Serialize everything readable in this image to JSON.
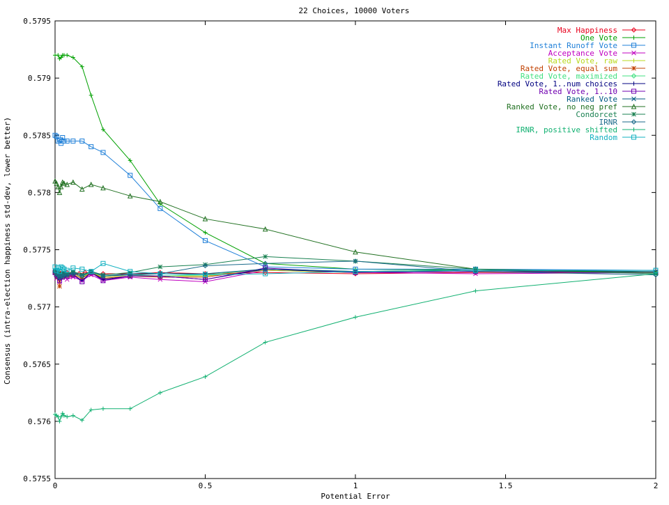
{
  "chart_data": {
    "type": "line",
    "title": "22 Choices, 10000 Voters",
    "xlabel": "Potential Error",
    "ylabel": "Consensus (intra-election happiness std-dev, lower better)",
    "xlim": [
      0,
      2
    ],
    "ylim": [
      0.5755,
      0.5795
    ],
    "xticks": [
      0,
      0.5,
      1,
      1.5,
      2
    ],
    "xtick_labels": [
      "0",
      "0.5",
      "1",
      "1.5",
      "2"
    ],
    "yticks": [
      0.5755,
      0.576,
      0.5765,
      0.577,
      0.5775,
      0.578,
      0.5785,
      0.579,
      0.5795
    ],
    "ytick_labels": [
      "0.5755",
      "0.576",
      "0.5765",
      "0.577",
      "0.5775",
      "0.578",
      "0.5785",
      "0.579",
      "0.5795"
    ],
    "grid": false,
    "legend_position": "top-right",
    "series": [
      {
        "name": "Max Happiness",
        "color": "#e8001c",
        "marker": "diamond",
        "x": [
          0,
          0.005,
          0.01,
          0.015,
          0.02,
          0.025,
          0.03,
          0.04,
          0.05,
          0.06,
          0.08,
          0.1,
          0.12,
          0.16,
          0.25,
          0.35,
          0.5,
          0.7,
          1,
          1.4,
          2
        ],
        "y": [
          0.5773,
          0.5773,
          0.57728,
          0.5773,
          0.57729,
          0.57728,
          0.57729,
          0.5773,
          0.57728,
          0.57729,
          0.57729,
          0.5773,
          0.57729,
          0.57729,
          0.57729,
          0.5773,
          0.57729,
          0.5773,
          0.57729,
          0.5773,
          0.5773
        ]
      },
      {
        "name": "One Vote",
        "color": "#00a000",
        "marker": "plus",
        "x": [
          0,
          0.01,
          0.015,
          0.02,
          0.025,
          0.03,
          0.04,
          0.06,
          0.09,
          0.12,
          0.16,
          0.25,
          0.35,
          0.5,
          0.7,
          1,
          1.4,
          2
        ],
        "y": [
          0.5792,
          0.5792,
          0.57917,
          0.57918,
          0.5792,
          0.5792,
          0.5792,
          0.57918,
          0.5791,
          0.57885,
          0.57855,
          0.57828,
          0.5779,
          0.57765,
          0.57738,
          0.57733,
          0.57732,
          0.5773
        ]
      },
      {
        "name": "Instant Runoff Vote",
        "color": "#1e7fd8",
        "marker": "square",
        "x": [
          0,
          0.005,
          0.01,
          0.015,
          0.02,
          0.025,
          0.03,
          0.04,
          0.06,
          0.09,
          0.12,
          0.16,
          0.25,
          0.35,
          0.5,
          0.7,
          1,
          1.4,
          2
        ],
        "y": [
          0.5785,
          0.57849,
          0.57845,
          0.57846,
          0.57843,
          0.57848,
          0.57845,
          0.57845,
          0.57845,
          0.57845,
          0.5784,
          0.57835,
          0.57815,
          0.57786,
          0.57758,
          0.57735,
          0.57733,
          0.57733,
          0.57732
        ]
      },
      {
        "name": "Acceptance Vote",
        "color": "#c000c0",
        "marker": "cross",
        "x": [
          0,
          0.005,
          0.01,
          0.015,
          0.02,
          0.025,
          0.03,
          0.04,
          0.06,
          0.09,
          0.12,
          0.16,
          0.25,
          0.35,
          0.5,
          0.7,
          1,
          1.4,
          2
        ],
        "y": [
          0.5773,
          0.57725,
          0.57728,
          0.57722,
          0.57726,
          0.57727,
          0.57728,
          0.57724,
          0.57726,
          0.57723,
          0.57728,
          0.57723,
          0.57726,
          0.57724,
          0.57722,
          0.57732,
          0.5773,
          0.57729,
          0.5773
        ]
      },
      {
        "name": "Rated Vote, raw",
        "color": "#b8d81e",
        "marker": "plus",
        "x": [
          0,
          0.005,
          0.01,
          0.015,
          0.02,
          0.025,
          0.03,
          0.04,
          0.06,
          0.09,
          0.12,
          0.16,
          0.25,
          0.35,
          0.5,
          0.7,
          1,
          1.4,
          2
        ],
        "y": [
          0.5773,
          0.57729,
          0.57727,
          0.57724,
          0.57728,
          0.57727,
          0.57729,
          0.57728,
          0.57729,
          0.57726,
          0.5773,
          0.57726,
          0.57728,
          0.57727,
          0.57727,
          0.57732,
          0.5773,
          0.57731,
          0.5773
        ]
      },
      {
        "name": "Rated Vote, equal sum",
        "color": "#c04000",
        "marker": "star",
        "x": [
          0,
          0.005,
          0.01,
          0.015,
          0.02,
          0.025,
          0.03,
          0.04,
          0.06,
          0.09,
          0.12,
          0.16,
          0.25,
          0.35,
          0.5,
          0.7,
          1,
          1.4,
          2
        ],
        "y": [
          0.5773,
          0.57728,
          0.57726,
          0.57718,
          0.57727,
          0.57726,
          0.57728,
          0.57727,
          0.57728,
          0.57725,
          0.5773,
          0.57725,
          0.57727,
          0.57726,
          0.57726,
          0.57733,
          0.5773,
          0.57731,
          0.5773
        ]
      },
      {
        "name": "Rated Vote, maximized",
        "color": "#40e080",
        "marker": "diamond",
        "x": [
          0,
          0.005,
          0.01,
          0.015,
          0.02,
          0.025,
          0.03,
          0.04,
          0.06,
          0.09,
          0.12,
          0.16,
          0.25,
          0.35,
          0.5,
          0.7,
          1,
          1.4,
          2
        ],
        "y": [
          0.57731,
          0.57729,
          0.57728,
          0.57725,
          0.57728,
          0.57727,
          0.57729,
          0.57728,
          0.57729,
          0.57727,
          0.5773,
          0.57727,
          0.57728,
          0.57727,
          0.57728,
          0.57733,
          0.57731,
          0.57731,
          0.5773
        ]
      },
      {
        "name": "Rated Vote, 1..num choices",
        "color": "#000080",
        "marker": "plus",
        "x": [
          0,
          0.005,
          0.01,
          0.015,
          0.02,
          0.025,
          0.03,
          0.04,
          0.06,
          0.09,
          0.12,
          0.16,
          0.25,
          0.35,
          0.5,
          0.7,
          1,
          1.4,
          2
        ],
        "y": [
          0.5773,
          0.57728,
          0.57727,
          0.57724,
          0.57727,
          0.57726,
          0.57728,
          0.57727,
          0.57728,
          0.57723,
          0.5773,
          0.57724,
          0.57727,
          0.57727,
          0.57724,
          0.57733,
          0.5773,
          0.57731,
          0.5773
        ]
      },
      {
        "name": "Rated Vote, 1..10",
        "color": "#7000b0",
        "marker": "square",
        "x": [
          0,
          0.005,
          0.01,
          0.015,
          0.02,
          0.025,
          0.03,
          0.04,
          0.06,
          0.09,
          0.12,
          0.16,
          0.25,
          0.35,
          0.5,
          0.7,
          1,
          1.4,
          2
        ],
        "y": [
          0.5773,
          0.57728,
          0.57727,
          0.57723,
          0.57727,
          0.57726,
          0.57728,
          0.57727,
          0.57728,
          0.57722,
          0.5773,
          0.57723,
          0.57727,
          0.57727,
          0.57724,
          0.57734,
          0.5773,
          0.57731,
          0.5773
        ]
      },
      {
        "name": "Ranked Vote",
        "color": "#005a82",
        "marker": "cross",
        "x": [
          0,
          0.005,
          0.01,
          0.015,
          0.02,
          0.025,
          0.03,
          0.04,
          0.06,
          0.09,
          0.12,
          0.16,
          0.25,
          0.35,
          0.5,
          0.7,
          1,
          1.4,
          2
        ],
        "y": [
          0.57731,
          0.57729,
          0.57728,
          0.57726,
          0.57728,
          0.57727,
          0.57729,
          0.57728,
          0.5773,
          0.57728,
          0.57731,
          0.57727,
          0.57729,
          0.57729,
          0.57729,
          0.57733,
          0.57731,
          0.57732,
          0.57731
        ]
      },
      {
        "name": "Ranked Vote, no neg pref",
        "color": "#207020",
        "marker": "triangle",
        "x": [
          0,
          0.005,
          0.01,
          0.015,
          0.02,
          0.025,
          0.03,
          0.04,
          0.06,
          0.09,
          0.12,
          0.16,
          0.25,
          0.35,
          0.5,
          0.7,
          1,
          1.4,
          2
        ],
        "y": [
          0.5781,
          0.57808,
          0.57805,
          0.578,
          0.57805,
          0.57809,
          0.57808,
          0.57807,
          0.57809,
          0.57803,
          0.57807,
          0.57804,
          0.57797,
          0.57792,
          0.57777,
          0.57768,
          0.57748,
          0.57733,
          0.5773
        ]
      },
      {
        "name": "Condorcet",
        "color": "#188050",
        "marker": "star",
        "x": [
          0,
          0.005,
          0.01,
          0.015,
          0.02,
          0.025,
          0.03,
          0.04,
          0.06,
          0.09,
          0.12,
          0.16,
          0.25,
          0.35,
          0.5,
          0.7,
          1,
          1.4,
          2
        ],
        "y": [
          0.57732,
          0.5773,
          0.57729,
          0.57727,
          0.57729,
          0.57728,
          0.5773,
          0.57729,
          0.57731,
          0.57728,
          0.57731,
          0.57728,
          0.5773,
          0.57735,
          0.57737,
          0.57744,
          0.5774,
          0.57733,
          0.57729
        ]
      },
      {
        "name": "IRNR",
        "color": "#1a6a8a",
        "marker": "diamond",
        "x": [
          0,
          0.005,
          0.01,
          0.015,
          0.02,
          0.025,
          0.03,
          0.04,
          0.06,
          0.09,
          0.12,
          0.16,
          0.25,
          0.35,
          0.5,
          0.7,
          1,
          1.4,
          2
        ],
        "y": [
          0.57731,
          0.57729,
          0.57728,
          0.57726,
          0.57728,
          0.57727,
          0.57729,
          0.57728,
          0.57729,
          0.57727,
          0.57731,
          0.57727,
          0.57728,
          0.57729,
          0.57736,
          0.57738,
          0.5774,
          0.57731,
          0.57728
        ]
      },
      {
        "name": "IRNR, positive shifted",
        "color": "#10b070",
        "marker": "plus",
        "x": [
          0,
          0.005,
          0.01,
          0.015,
          0.02,
          0.025,
          0.03,
          0.04,
          0.06,
          0.09,
          0.12,
          0.16,
          0.25,
          0.35,
          0.5,
          0.7,
          1,
          1.4,
          2
        ],
        "y": [
          0.57606,
          0.57605,
          0.57604,
          0.576,
          0.57604,
          0.57607,
          0.57605,
          0.57604,
          0.57605,
          0.57601,
          0.5761,
          0.57611,
          0.57611,
          0.57625,
          0.57639,
          0.57669,
          0.57691,
          0.57714,
          0.57729
        ]
      },
      {
        "name": "Random",
        "color": "#10b0c0",
        "marker": "square",
        "x": [
          0,
          0.005,
          0.01,
          0.015,
          0.02,
          0.025,
          0.03,
          0.04,
          0.06,
          0.09,
          0.12,
          0.16,
          0.25,
          0.35,
          0.5,
          0.7,
          1,
          1.4,
          2
        ],
        "y": [
          0.57735,
          0.57732,
          0.57734,
          0.57731,
          0.57735,
          0.57734,
          0.57733,
          0.57732,
          0.57734,
          0.57733,
          0.57731,
          0.57738,
          0.57731,
          0.57729,
          0.57728,
          0.57729,
          0.57731,
          0.57732,
          0.57732
        ]
      }
    ]
  }
}
